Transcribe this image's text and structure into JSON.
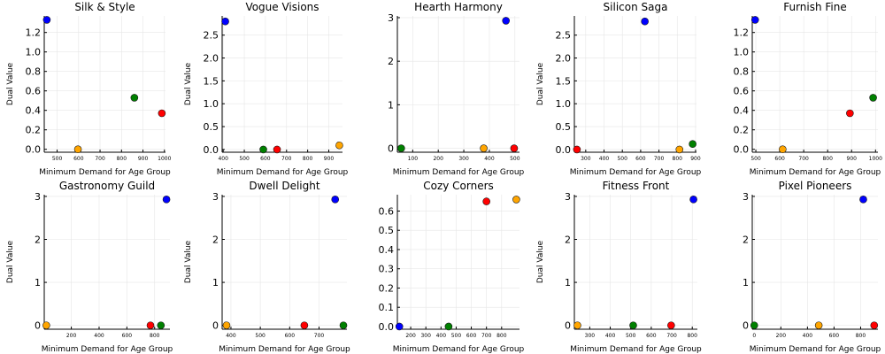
{
  "colors": {
    "blue": "#0000ff",
    "orange": "#ffa500",
    "green": "#008000",
    "red": "#ff0000"
  },
  "chart_data": [
    {
      "type": "scatter",
      "title": "Silk & Style",
      "xlabel": "Minimum Demand for Age Group",
      "ylabel": "Dual Value",
      "xlim": [
        440,
        1005
      ],
      "ylim": [
        -0.03,
        1.37
      ],
      "xticks": [
        500,
        600,
        700,
        800,
        900,
        1000
      ],
      "xtick_labels": [
        "500",
        "600",
        "700",
        "800",
        "900",
        "1000"
      ],
      "xtick_size": "sm",
      "yticks": [
        0,
        0.2,
        0.4,
        0.6,
        0.8,
        1.0,
        1.2
      ],
      "ytick_labels": [
        "0.0",
        "0.2",
        "0.4",
        "0.6",
        "0.8",
        "1.0",
        "1.2"
      ],
      "ytick_size": "lg",
      "points": [
        {
          "x": 452,
          "y": 1.33,
          "color": "blue"
        },
        {
          "x": 597,
          "y": 0.0,
          "color": "orange"
        },
        {
          "x": 860,
          "y": 0.53,
          "color": "green"
        },
        {
          "x": 988,
          "y": 0.37,
          "color": "red"
        }
      ]
    },
    {
      "type": "scatter",
      "title": "Vogue Visions",
      "xlabel": "Minimum Demand for Age Group",
      "ylabel": "Dual Value",
      "xlim": [
        395,
        965
      ],
      "ylim": [
        -0.06,
        2.92
      ],
      "xticks": [
        400,
        500,
        600,
        700,
        800,
        900
      ],
      "xtick_labels": [
        "400",
        "500",
        "600",
        "700",
        "800",
        "900"
      ],
      "xtick_size": "sm",
      "yticks": [
        0,
        0.5,
        1.0,
        1.5,
        2.0,
        2.5
      ],
      "ytick_labels": [
        "0.0",
        "0.5",
        "1.0",
        "1.5",
        "2.0",
        "2.5"
      ],
      "ytick_size": "lg",
      "points": [
        {
          "x": 410,
          "y": 2.8,
          "color": "blue"
        },
        {
          "x": 590,
          "y": 0.0,
          "color": "green"
        },
        {
          "x": 655,
          "y": 0.0,
          "color": "red"
        },
        {
          "x": 950,
          "y": 0.09,
          "color": "orange"
        }
      ]
    },
    {
      "type": "scatter",
      "title": "Hearth Harmony",
      "xlabel": "Minimum Demand for Age Group",
      "ylabel": "",
      "xlim": [
        40,
        518
      ],
      "ylim": [
        -0.09,
        3.04
      ],
      "xticks": [
        100,
        200,
        300,
        400,
        500
      ],
      "xtick_labels": [
        "100",
        "200",
        "300",
        "400",
        "500"
      ],
      "xtick_size": "sm",
      "yticks": [
        0,
        1,
        2,
        3
      ],
      "ytick_labels": [
        "0",
        "1",
        "2",
        "3"
      ],
      "ytick_size": "lg",
      "points": [
        {
          "x": 55,
          "y": 0.0,
          "color": "green"
        },
        {
          "x": 378,
          "y": 0.0,
          "color": "orange"
        },
        {
          "x": 465,
          "y": 2.93,
          "color": "blue"
        },
        {
          "x": 497,
          "y": 0.0,
          "color": "red"
        }
      ]
    },
    {
      "type": "scatter",
      "title": "Silicon Saga",
      "xlabel": "Minimum Demand for Age Group",
      "ylabel": "Dual Value",
      "xlim": [
        238,
        905
      ],
      "ylim": [
        -0.06,
        2.92
      ],
      "xticks": [
        300,
        400,
        500,
        600,
        700,
        800,
        900
      ],
      "xtick_labels": [
        "300",
        "400",
        "500",
        "600",
        "700",
        "800",
        "900"
      ],
      "xtick_size": "sm",
      "yticks": [
        0,
        0.5,
        1.0,
        1.5,
        2.0,
        2.5
      ],
      "ytick_labels": [
        "0.0",
        "0.5",
        "1.0",
        "1.5",
        "2.0",
        "2.5"
      ],
      "ytick_size": "lg",
      "points": [
        {
          "x": 252,
          "y": 0.0,
          "color": "red"
        },
        {
          "x": 623,
          "y": 2.8,
          "color": "blue"
        },
        {
          "x": 812,
          "y": 0.0,
          "color": "orange"
        },
        {
          "x": 884,
          "y": 0.12,
          "color": "green"
        }
      ]
    },
    {
      "type": "scatter",
      "title": "Furnish Fine",
      "xlabel": "Minimum Demand for Age Group",
      "ylabel": "",
      "xlim": [
        485,
        1010
      ],
      "ylim": [
        -0.03,
        1.37
      ],
      "xticks": [
        500,
        600,
        700,
        800,
        900,
        1000
      ],
      "xtick_labels": [
        "500",
        "600",
        "700",
        "800",
        "900",
        "1000"
      ],
      "xtick_size": "sm",
      "yticks": [
        0,
        0.2,
        0.4,
        0.6,
        0.8,
        1.0,
        1.2
      ],
      "ytick_labels": [
        "0.0",
        "0.2",
        "0.4",
        "0.6",
        "0.8",
        "1.0",
        "1.2"
      ],
      "ytick_size": "lg",
      "points": [
        {
          "x": 497,
          "y": 1.33,
          "color": "blue"
        },
        {
          "x": 612,
          "y": 0.0,
          "color": "orange"
        },
        {
          "x": 893,
          "y": 0.37,
          "color": "red"
        },
        {
          "x": 990,
          "y": 0.53,
          "color": "green"
        }
      ]
    },
    {
      "type": "scatter",
      "title": "Gastronomy Guild",
      "xlabel": "Minimum Demand for Age Group",
      "ylabel": "Dual Value",
      "xlim": [
        5,
        910
      ],
      "ylim": [
        -0.09,
        3.04
      ],
      "xticks": [
        200,
        400,
        600,
        800
      ],
      "xtick_labels": [
        "200",
        "400",
        "600",
        "800"
      ],
      "xtick_size": "sm",
      "yticks": [
        0,
        1,
        2,
        3
      ],
      "ytick_labels": [
        "0",
        "1",
        "2",
        "3"
      ],
      "ytick_size": "lg",
      "points": [
        {
          "x": 20,
          "y": 0.0,
          "color": "orange"
        },
        {
          "x": 770,
          "y": 0.0,
          "color": "red"
        },
        {
          "x": 845,
          "y": 0.0,
          "color": "green"
        },
        {
          "x": 885,
          "y": 2.93,
          "color": "blue"
        }
      ]
    },
    {
      "type": "scatter",
      "title": "Dwell Delight",
      "xlabel": "Minimum Demand for Age Group",
      "ylabel": "Dual Value",
      "xlim": [
        370,
        795
      ],
      "ylim": [
        -0.09,
        3.04
      ],
      "xticks": [
        400,
        500,
        600,
        700
      ],
      "xtick_labels": [
        "400",
        "500",
        "600",
        "700"
      ],
      "xtick_size": "sm",
      "yticks": [
        0,
        1,
        2,
        3
      ],
      "ytick_labels": [
        "0",
        "1",
        "2",
        "3"
      ],
      "ytick_size": "lg",
      "points": [
        {
          "x": 385,
          "y": 0.0,
          "color": "orange"
        },
        {
          "x": 650,
          "y": 0.0,
          "color": "red"
        },
        {
          "x": 755,
          "y": 2.93,
          "color": "blue"
        },
        {
          "x": 783,
          "y": 0.0,
          "color": "green"
        }
      ]
    },
    {
      "type": "scatter",
      "title": "Cozy Corners",
      "xlabel": "Minimum Demand for Age Group",
      "ylabel": "",
      "xlim": [
        112,
        918
      ],
      "ylim": [
        -0.014,
        0.685
      ],
      "xticks": [
        200,
        300,
        400,
        500,
        600,
        700,
        800
      ],
      "xtick_labels": [
        "200",
        "300",
        "400",
        "500",
        "600",
        "700",
        "800"
      ],
      "xtick_size": "sm",
      "yticks": [
        0,
        0.1,
        0.2,
        0.3,
        0.4,
        0.5,
        0.6
      ],
      "ytick_labels": [
        "0.0",
        "0.1",
        "0.2",
        "0.3",
        "0.4",
        "0.5",
        "0.6"
      ],
      "ytick_size": "lg",
      "points": [
        {
          "x": 125,
          "y": 0.0,
          "color": "blue"
        },
        {
          "x": 450,
          "y": 0.0,
          "color": "green"
        },
        {
          "x": 700,
          "y": 0.65,
          "color": "red"
        },
        {
          "x": 897,
          "y": 0.66,
          "color": "orange"
        }
      ]
    },
    {
      "type": "scatter",
      "title": "Fitness Front",
      "xlabel": "Minimum Demand for Age Group",
      "ylabel": "Dual Value",
      "xlim": [
        225,
        825
      ],
      "ylim": [
        -0.09,
        3.04
      ],
      "xticks": [
        300,
        400,
        500,
        600,
        700,
        800
      ],
      "xtick_labels": [
        "300",
        "400",
        "500",
        "600",
        "700",
        "800"
      ],
      "xtick_size": "sm",
      "yticks": [
        0,
        1,
        2,
        3
      ],
      "ytick_labels": [
        "0",
        "1",
        "2",
        "3"
      ],
      "ytick_size": "lg",
      "points": [
        {
          "x": 240,
          "y": 0.0,
          "color": "orange"
        },
        {
          "x": 512,
          "y": 0.0,
          "color": "green"
        },
        {
          "x": 697,
          "y": 0.0,
          "color": "red"
        },
        {
          "x": 806,
          "y": 2.93,
          "color": "blue"
        }
      ]
    },
    {
      "type": "scatter",
      "title": "Pixel Pioneers",
      "xlabel": "Minimum Demand for Age Group",
      "ylabel": "",
      "xlim": [
        -15,
        930
      ],
      "ylim": [
        -0.09,
        3.04
      ],
      "xticks": [
        0,
        200,
        400,
        600,
        800
      ],
      "xtick_labels": [
        "0",
        "200",
        "400",
        "600",
        "800"
      ],
      "xtick_size": "sm",
      "yticks": [
        0,
        1,
        2,
        3
      ],
      "ytick_labels": [
        "0",
        "1",
        "2",
        "3"
      ],
      "ytick_size": "lg",
      "points": [
        {
          "x": 0,
          "y": 0.0,
          "color": "green"
        },
        {
          "x": 485,
          "y": 0.0,
          "color": "orange"
        },
        {
          "x": 820,
          "y": 2.93,
          "color": "blue"
        },
        {
          "x": 902,
          "y": 0.0,
          "color": "red"
        }
      ]
    }
  ]
}
